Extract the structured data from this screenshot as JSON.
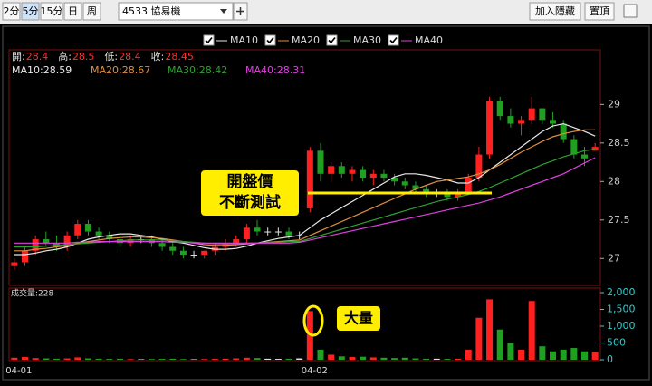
{
  "toolbar": {
    "periods": [
      "2分",
      "5分",
      "15分",
      "日",
      "周"
    ],
    "active": 1,
    "symbol": "4533 協易機",
    "buttons": [
      "加入隱藏",
      "置頂"
    ]
  },
  "chart_data": {
    "type": "candlestick",
    "categories": [
      "04-01",
      null,
      null,
      null,
      null,
      null,
      null,
      null,
      null,
      null,
      null,
      null,
      null,
      null,
      null,
      null,
      null,
      null,
      null,
      null,
      null,
      null,
      null,
      null,
      null,
      null,
      null,
      null,
      "04-02",
      null,
      null,
      null,
      null,
      null,
      null,
      null,
      null,
      null,
      null,
      null,
      null,
      null,
      null,
      null,
      null,
      null,
      null,
      null,
      null,
      null,
      null,
      null,
      null,
      null,
      null,
      null
    ],
    "open": [
      26.9,
      26.95,
      27.1,
      27.25,
      27.2,
      27.15,
      27.3,
      27.45,
      27.35,
      27.3,
      27.25,
      27.2,
      27.25,
      27.25,
      27.2,
      27.15,
      27.1,
      27.05,
      27.05,
      27.1,
      27.15,
      27.2,
      27.25,
      27.4,
      27.35,
      27.35,
      27.35,
      27.3,
      27.65,
      28.4,
      28.1,
      28.2,
      28.1,
      28.15,
      28.05,
      28.1,
      28.05,
      28.0,
      27.95,
      27.9,
      27.85,
      27.85,
      27.8,
      27.85,
      28.05,
      28.35,
      29.05,
      28.85,
      28.75,
      28.8,
      28.95,
      28.8,
      28.75,
      28.55,
      28.35,
      28.4
    ],
    "high": [
      27.0,
      27.15,
      27.3,
      27.35,
      27.3,
      27.35,
      27.5,
      27.5,
      27.4,
      27.35,
      27.3,
      27.3,
      27.3,
      27.3,
      27.25,
      27.2,
      27.15,
      27.1,
      27.1,
      27.2,
      27.25,
      27.3,
      27.45,
      27.5,
      27.4,
      27.4,
      27.4,
      27.35,
      28.45,
      28.5,
      28.25,
      28.25,
      28.2,
      28.2,
      28.15,
      28.15,
      28.1,
      28.05,
      28.0,
      27.95,
      27.9,
      27.9,
      27.9,
      28.1,
      28.45,
      29.1,
      29.1,
      28.95,
      28.85,
      29.1,
      28.95,
      28.9,
      28.8,
      28.6,
      28.45,
      28.5
    ],
    "low": [
      26.85,
      26.9,
      27.05,
      27.15,
      27.1,
      27.1,
      27.25,
      27.3,
      27.25,
      27.2,
      27.15,
      27.15,
      27.2,
      27.15,
      27.1,
      27.05,
      27.0,
      27.0,
      27.0,
      27.05,
      27.1,
      27.15,
      27.2,
      27.3,
      27.3,
      27.3,
      27.25,
      27.25,
      27.6,
      28.0,
      28.0,
      28.05,
      28.0,
      28.0,
      27.95,
      28.0,
      27.95,
      27.9,
      27.85,
      27.8,
      27.8,
      27.75,
      27.75,
      27.85,
      28.0,
      28.3,
      28.8,
      28.7,
      28.6,
      28.75,
      28.75,
      28.7,
      28.5,
      28.3,
      28.2,
      28.4
    ],
    "close": [
      26.95,
      27.1,
      27.25,
      27.2,
      27.15,
      27.3,
      27.45,
      27.35,
      27.3,
      27.25,
      27.2,
      27.25,
      27.25,
      27.2,
      27.15,
      27.1,
      27.05,
      27.05,
      27.1,
      27.15,
      27.2,
      27.25,
      27.4,
      27.35,
      27.35,
      27.35,
      27.3,
      27.3,
      28.4,
      28.1,
      28.2,
      28.1,
      28.15,
      28.05,
      28.1,
      28.05,
      28.0,
      27.95,
      27.9,
      27.85,
      27.85,
      27.8,
      27.85,
      28.05,
      28.35,
      29.05,
      28.85,
      28.75,
      28.8,
      28.95,
      28.8,
      28.75,
      28.55,
      28.35,
      28.3,
      28.45
    ],
    "volume": [
      60,
      80,
      50,
      40,
      30,
      40,
      70,
      40,
      30,
      25,
      30,
      20,
      15,
      20,
      25,
      30,
      20,
      15,
      20,
      25,
      30,
      40,
      60,
      50,
      30,
      25,
      30,
      40,
      1450,
      300,
      150,
      100,
      80,
      90,
      70,
      60,
      50,
      60,
      40,
      30,
      30,
      25,
      30,
      300,
      1250,
      1800,
      900,
      500,
      300,
      1750,
      400,
      250,
      300,
      350,
      250,
      228
    ],
    "up_color": "#ff2020",
    "down_color": "#20a020",
    "flat_color": "#e0e0e0",
    "series": [
      {
        "name": "MA10",
        "readout_label": "MA10:",
        "readout": 28.59,
        "color": "#e8e8e8",
        "values": [
          27.05,
          27.05,
          27.07,
          27.1,
          27.12,
          27.15,
          27.2,
          27.25,
          27.28,
          27.3,
          27.32,
          27.32,
          27.3,
          27.28,
          27.25,
          27.22,
          27.2,
          27.17,
          27.14,
          27.12,
          27.12,
          27.13,
          27.16,
          27.2,
          27.23,
          27.26,
          27.28,
          27.3,
          27.4,
          27.5,
          27.58,
          27.66,
          27.74,
          27.82,
          27.9,
          27.98,
          28.06,
          28.1,
          28.1,
          28.08,
          28.05,
          28.02,
          27.98,
          27.98,
          28.05,
          28.15,
          28.25,
          28.35,
          28.45,
          28.55,
          28.65,
          28.72,
          28.75,
          28.7,
          28.65,
          28.59
        ]
      },
      {
        "name": "MA20",
        "readout_label": "MA20:",
        "readout": 28.67,
        "color": "#e09040",
        "values": [
          27.1,
          27.1,
          27.12,
          27.13,
          27.15,
          27.17,
          27.2,
          27.22,
          27.24,
          27.26,
          27.27,
          27.28,
          27.28,
          27.27,
          27.26,
          27.24,
          27.22,
          27.2,
          27.18,
          27.17,
          27.17,
          27.18,
          27.19,
          27.2,
          27.21,
          27.22,
          27.23,
          27.24,
          27.3,
          27.36,
          27.42,
          27.48,
          27.54,
          27.6,
          27.66,
          27.72,
          27.78,
          27.84,
          27.9,
          27.95,
          28.0,
          28.02,
          28.04,
          28.06,
          28.1,
          28.15,
          28.22,
          28.3,
          28.38,
          28.45,
          28.52,
          28.58,
          28.62,
          28.65,
          28.67,
          28.67
        ]
      },
      {
        "name": "MA30",
        "readout_label": "MA30:",
        "readout": 28.42,
        "color": "#30a030",
        "values": [
          27.15,
          27.15,
          27.15,
          27.16,
          27.17,
          27.18,
          27.19,
          27.2,
          27.21,
          27.22,
          27.23,
          27.24,
          27.24,
          27.24,
          27.24,
          27.23,
          27.22,
          27.21,
          27.2,
          27.19,
          27.19,
          27.19,
          27.2,
          27.2,
          27.21,
          27.21,
          27.22,
          27.22,
          27.26,
          27.3,
          27.34,
          27.38,
          27.42,
          27.46,
          27.5,
          27.54,
          27.58,
          27.62,
          27.66,
          27.7,
          27.74,
          27.77,
          27.8,
          27.83,
          27.87,
          27.92,
          27.98,
          28.04,
          28.1,
          28.16,
          28.22,
          28.27,
          28.32,
          28.36,
          28.4,
          28.42
        ]
      },
      {
        "name": "MA40",
        "readout_label": "MA40:",
        "readout": 28.31,
        "color": "#e040e0",
        "values": [
          27.2,
          27.2,
          27.2,
          27.2,
          27.2,
          27.2,
          27.21,
          27.21,
          27.22,
          27.22,
          27.22,
          27.22,
          27.22,
          27.22,
          27.22,
          27.21,
          27.21,
          27.2,
          27.2,
          27.2,
          27.2,
          27.2,
          27.2,
          27.2,
          27.2,
          27.2,
          27.2,
          27.21,
          27.24,
          27.27,
          27.3,
          27.33,
          27.36,
          27.39,
          27.42,
          27.45,
          27.48,
          27.51,
          27.54,
          27.57,
          27.6,
          27.63,
          27.66,
          27.69,
          27.72,
          27.76,
          27.8,
          27.85,
          27.9,
          27.95,
          28.0,
          28.05,
          28.1,
          28.17,
          28.24,
          28.31
        ]
      }
    ],
    "info": [
      {
        "label": "開:",
        "value": 28.4
      },
      {
        "label": "高:",
        "value": 28.5
      },
      {
        "label": "低:",
        "value": 28.4
      },
      {
        "label": "收:",
        "value": 28.45
      }
    ],
    "ylim": [
      26.65,
      29.71
    ],
    "yticks": [
      27,
      27.5,
      28,
      28.5,
      29
    ],
    "volume_label": "成交量:",
    "volume_readout": 228,
    "volume_ylim": [
      0,
      2000
    ],
    "volume_ticks": [
      0,
      500,
      {
        "value": 1000,
        "label": "1,000"
      },
      {
        "value": 1500,
        "label": "1,500"
      },
      {
        "value": 2000,
        "label": "2,000"
      }
    ],
    "reference_line": 27.85,
    "annotations": {
      "open_test": [
        "開盤價",
        "不斷測試"
      ],
      "big_volume": "大量"
    }
  }
}
